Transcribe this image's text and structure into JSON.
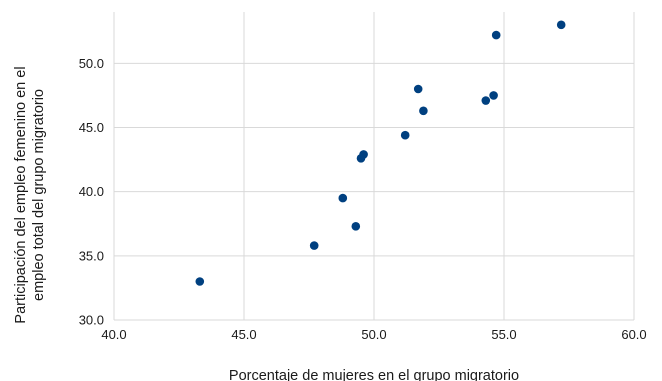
{
  "chart_data": {
    "type": "scatter",
    "title": "",
    "xlabel": "Porcentaje de mujeres en el grupo migratorio",
    "ylabel_lines": [
      "Participación del empleo femenino en el",
      "empleo total del grupo migratorio"
    ],
    "xlim": [
      40.0,
      60.0
    ],
    "ylim": [
      30.0,
      54.0
    ],
    "xticks": [
      40.0,
      45.0,
      50.0,
      55.0,
      60.0
    ],
    "yticks": [
      30.0,
      35.0,
      40.0,
      45.0,
      50.0
    ],
    "xtick_labels": [
      "40.0",
      "45.0",
      "50.0",
      "55.0",
      "60.0"
    ],
    "ytick_labels": [
      "30.0",
      "35.0",
      "40.0",
      "45.0",
      "50.0"
    ],
    "grid": true,
    "marker_color": "#004080",
    "points": [
      {
        "x": 43.3,
        "y": 33.0
      },
      {
        "x": 47.7,
        "y": 35.8
      },
      {
        "x": 48.8,
        "y": 39.5
      },
      {
        "x": 49.3,
        "y": 37.3
      },
      {
        "x": 49.5,
        "y": 42.6
      },
      {
        "x": 49.6,
        "y": 42.9
      },
      {
        "x": 51.2,
        "y": 44.4
      },
      {
        "x": 51.7,
        "y": 48.0
      },
      {
        "x": 51.9,
        "y": 46.3
      },
      {
        "x": 54.3,
        "y": 47.1
      },
      {
        "x": 54.6,
        "y": 47.5
      },
      {
        "x": 54.7,
        "y": 52.2
      },
      {
        "x": 57.2,
        "y": 53.0
      }
    ]
  }
}
